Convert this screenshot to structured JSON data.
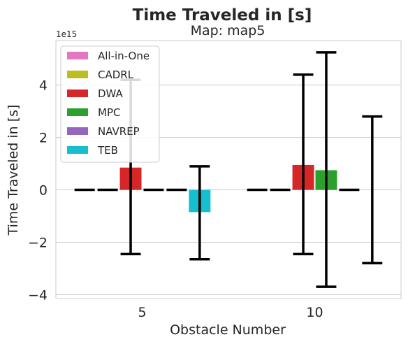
{
  "chart_data": {
    "type": "bar",
    "title": "Time Traveled in [s]",
    "subtitle": "Map: map5",
    "xlabel": "Obstacle Number",
    "ylabel": "Time Traveled in [s]",
    "y_offset_label": "1e15",
    "y_scale": 1000000000000000.0,
    "ylim": [
      -4.15,
      5.7
    ],
    "yticks": [
      -4,
      -2,
      0,
      2,
      4
    ],
    "ytick_labels": [
      "−4",
      "−2",
      "0",
      "2",
      "4"
    ],
    "grid": true,
    "legend_position": "top-left",
    "categories": [
      "5",
      "10"
    ],
    "series": [
      {
        "name": "All-in-One",
        "color": "#e377c2",
        "values": [
          0.0,
          0.0
        ],
        "err_low": [
          0.0,
          0.0
        ],
        "err_high": [
          0.0,
          0.0
        ]
      },
      {
        "name": "CADRL",
        "color": "#bcbd22",
        "values": [
          0.0,
          0.0
        ],
        "err_low": [
          0.0,
          0.0
        ],
        "err_high": [
          0.0,
          0.0
        ]
      },
      {
        "name": "DWA",
        "color": "#d62728",
        "values": [
          0.85,
          0.95
        ],
        "err_low": [
          -2.45,
          -2.45
        ],
        "err_high": [
          4.2,
          4.4
        ]
      },
      {
        "name": "MPC",
        "color": "#2ca02c",
        "values": [
          0.0,
          0.75
        ],
        "err_low": [
          0.0,
          -3.7
        ],
        "err_high": [
          0.0,
          5.25
        ]
      },
      {
        "name": "NAVREP",
        "color": "#9467bd",
        "values": [
          0.0,
          0.0
        ],
        "err_low": [
          0.0,
          0.0
        ],
        "err_high": [
          0.0,
          0.0
        ]
      },
      {
        "name": "TEB",
        "color": "#17becf",
        "values": [
          -0.85,
          null
        ],
        "err_low": [
          -2.65,
          -2.8
        ],
        "err_high": [
          0.9,
          2.8
        ]
      }
    ]
  }
}
